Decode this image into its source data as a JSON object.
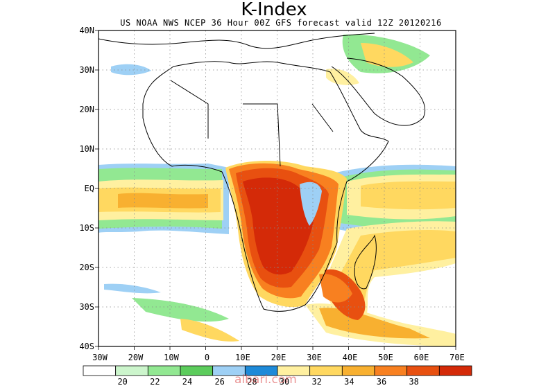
{
  "title": "K-Index",
  "subtitle": "US NOAA NWS NCEP 36 Hour 00Z GFS forecast valid 12Z 20120216",
  "lat_labels": [
    "40N",
    "30N",
    "20N",
    "10N",
    "EQ",
    "10S",
    "20S",
    "30S",
    "40S"
  ],
  "lon_labels": [
    "30W",
    "20W",
    "10W",
    "0",
    "10E",
    "20E",
    "30E",
    "40E",
    "50E",
    "60E",
    "70E"
  ],
  "colorbar": {
    "labels": [
      "20",
      "22",
      "24",
      "26",
      "28",
      "30",
      "32",
      "34",
      "36",
      "38"
    ],
    "colors": [
      "#ffffff",
      "#ccf5cc",
      "#92e892",
      "#5ccc5c",
      "#9ed0f5",
      "#1e8ad8",
      "#fff0a0",
      "#ffd860",
      "#f8b030",
      "#f88020",
      "#e85010",
      "#d42a08"
    ]
  },
  "watermark": "albari.com"
}
